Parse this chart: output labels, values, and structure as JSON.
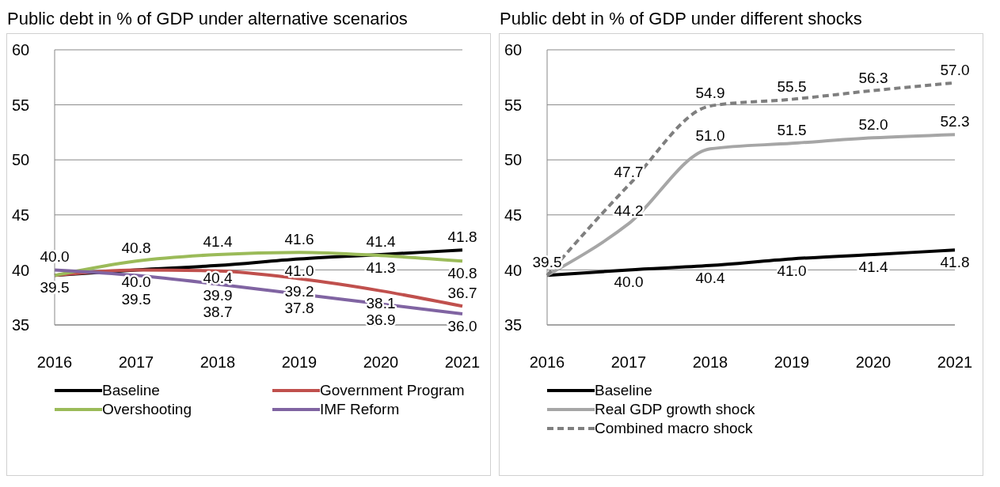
{
  "chart_data": [
    {
      "type": "line",
      "title": "Public debt in % of GDP under alternative scenarios",
      "categories": [
        "2016",
        "2017",
        "2018",
        "2019",
        "2020",
        "2021"
      ],
      "ylim": [
        35,
        60
      ],
      "yticks": [
        35,
        40,
        45,
        50,
        55,
        60
      ],
      "grid": "y",
      "legend": "bottom",
      "marker": "none",
      "series": [
        {
          "name": "Baseline",
          "color": "#000000",
          "values": [
            39.5,
            40.0,
            40.4,
            41.0,
            41.4,
            41.8
          ],
          "value_labels": [
            "39.5",
            "40.0",
            "40.4",
            "41.0",
            "41.4",
            "41.8"
          ]
        },
        {
          "name": "Government Program",
          "color": "#c0504d",
          "values": [
            39.5,
            40.0,
            39.9,
            39.2,
            38.1,
            36.7
          ],
          "value_labels": [
            null,
            null,
            "39.9",
            "39.2",
            "38.1",
            "36.7"
          ]
        },
        {
          "name": "Overshooting",
          "color": "#9bbb59",
          "values": [
            39.5,
            40.8,
            41.4,
            41.6,
            41.3,
            40.8
          ],
          "value_labels": [
            null,
            "40.8",
            "41.4",
            "41.6",
            "41.3",
            "40.8"
          ]
        },
        {
          "name": "IMF Reform",
          "color": "#8064a2",
          "values": [
            40.0,
            39.5,
            38.7,
            37.8,
            36.9,
            36.0
          ],
          "value_labels": [
            "40.0",
            "39.5",
            "38.7",
            "37.8",
            "36.9",
            "36.0"
          ]
        }
      ]
    },
    {
      "type": "line",
      "title": "Public debt in % of GDP under different shocks",
      "categories": [
        "2016",
        "2017",
        "2018",
        "2019",
        "2020",
        "2021"
      ],
      "ylim": [
        35,
        60
      ],
      "yticks": [
        35,
        40,
        45,
        50,
        55,
        60
      ],
      "grid": "y",
      "legend": "bottom",
      "marker": "none",
      "series": [
        {
          "name": "Baseline",
          "color": "#000000",
          "values": [
            39.5,
            40.0,
            40.4,
            41.0,
            41.4,
            41.8
          ],
          "value_labels": [
            "39.5",
            "40.0",
            "40.4",
            "41.0",
            "41.4",
            "41.8"
          ]
        },
        {
          "name": "Real GDP growth shock",
          "color": "#a6a6a6",
          "values": [
            39.5,
            44.2,
            51.0,
            51.5,
            52.0,
            52.3
          ],
          "value_labels": [
            null,
            "44.2",
            "51.0",
            "51.5",
            "52.0",
            "52.3"
          ]
        },
        {
          "name": "Combined macro shock",
          "color": "#7f7f7f",
          "line_style": "dashed",
          "values": [
            39.5,
            47.7,
            54.9,
            55.5,
            56.3,
            57.0
          ],
          "value_labels": [
            null,
            "47.7",
            "54.9",
            "55.5",
            "56.3",
            "57.0"
          ]
        }
      ]
    }
  ]
}
